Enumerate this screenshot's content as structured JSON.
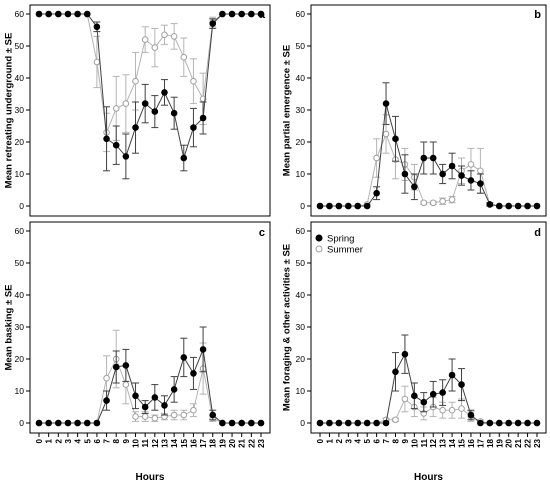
{
  "colors": {
    "spring": "#000000",
    "summer": "#a0a0a0",
    "spring_line": "#404040",
    "summer_line": "#b4b4b4"
  },
  "legend": {
    "spring": "Spring",
    "summer": "Summer"
  },
  "chart_data": [
    {
      "type": "line",
      "panel": "a",
      "ylabel": "Mean retreating underground ± SE",
      "xlabel": "Hours",
      "categories": [
        "0",
        "1",
        "2",
        "3",
        "4",
        "5",
        "6",
        "7",
        "8",
        "9",
        "10",
        "11",
        "12",
        "13",
        "14",
        "15",
        "16",
        "17",
        "18",
        "19",
        "20",
        "21",
        "22",
        "23"
      ],
      "ylim": [
        0,
        62
      ],
      "yticks": [
        0,
        10,
        20,
        30,
        40,
        50,
        60
      ],
      "series": [
        {
          "name": "Spring",
          "values": [
            60,
            60,
            60,
            60,
            60,
            60,
            56,
            21,
            19,
            15.5,
            24.5,
            32,
            29.5,
            35.5,
            29,
            15,
            24.5,
            27.5,
            57,
            60,
            60,
            60,
            60,
            60
          ],
          "se": [
            0,
            0,
            0,
            0,
            0,
            0,
            1.5,
            10,
            6,
            7,
            8,
            6,
            5,
            4,
            5,
            4,
            6,
            5,
            1.5,
            0,
            0,
            0,
            0,
            0
          ]
        },
        {
          "name": "Summer",
          "values": [
            60,
            60,
            60,
            60,
            60,
            60,
            45,
            23,
            30.5,
            32,
            39,
            52,
            49.5,
            53.5,
            53,
            46.5,
            39,
            33.5,
            57.5,
            60,
            60,
            60,
            60,
            60
          ],
          "se": [
            0,
            0,
            0,
            0,
            0,
            0,
            8,
            6,
            10,
            9,
            9,
            4,
            6,
            3,
            4,
            6,
            7,
            8,
            1.5,
            0,
            0,
            0,
            0,
            0
          ]
        }
      ]
    },
    {
      "type": "line",
      "panel": "b",
      "ylabel": "Mean partial emergence ± SE",
      "xlabel": "Hours",
      "categories": [
        "0",
        "1",
        "2",
        "3",
        "4",
        "5",
        "6",
        "7",
        "8",
        "9",
        "10",
        "11",
        "12",
        "13",
        "14",
        "15",
        "16",
        "17",
        "18",
        "19",
        "20",
        "21",
        "22",
        "23"
      ],
      "ylim": [
        0,
        62
      ],
      "yticks": [
        0,
        10,
        20,
        30,
        40,
        50,
        60
      ],
      "series": [
        {
          "name": "Spring",
          "values": [
            0,
            0,
            0,
            0,
            0,
            0,
            4,
            32,
            21,
            10,
            6,
            15,
            15,
            10,
            12.5,
            9.5,
            8,
            7,
            0.5,
            0,
            0,
            0,
            0,
            0
          ],
          "se": [
            0,
            0,
            0,
            0,
            0,
            0,
            2,
            6.5,
            7,
            6,
            4,
            5,
            5,
            3,
            4,
            3,
            3,
            3,
            0.5,
            0,
            0,
            0,
            0,
            0
          ]
        },
        {
          "name": "Summer",
          "values": [
            0,
            0,
            0,
            0,
            0,
            0.5,
            15,
            22.5,
            14.5,
            13,
            9,
            1,
            1,
            1.5,
            2,
            11,
            13,
            11,
            0.5,
            0,
            0,
            0,
            0,
            0
          ],
          "se": [
            0,
            0,
            0,
            0,
            0,
            0.5,
            6,
            6,
            6,
            5,
            4,
            0.5,
            0.5,
            1,
            1,
            4,
            5,
            7,
            0.5,
            0,
            0,
            0,
            0,
            0
          ]
        }
      ]
    },
    {
      "type": "line",
      "panel": "c",
      "ylabel": "Mean basking ± SE",
      "xlabel": "Hours",
      "categories": [
        "0",
        "1",
        "2",
        "3",
        "4",
        "5",
        "6",
        "7",
        "8",
        "9",
        "10",
        "11",
        "12",
        "13",
        "14",
        "15",
        "16",
        "17",
        "18",
        "19",
        "20",
        "21",
        "22",
        "23"
      ],
      "ylim": [
        0,
        62
      ],
      "yticks": [
        0,
        10,
        20,
        30,
        40,
        50,
        60
      ],
      "series": [
        {
          "name": "Spring",
          "values": [
            0,
            0,
            0,
            0,
            0,
            0,
            0,
            7,
            17.5,
            18,
            8.5,
            5,
            8,
            5.5,
            10.5,
            20.5,
            15.5,
            23,
            2.5,
            0,
            0,
            0,
            0,
            0
          ],
          "se": [
            0,
            0,
            0,
            0,
            0,
            0,
            0,
            3,
            5,
            5,
            4,
            2,
            4,
            3,
            4,
            6,
            5,
            7,
            1.5,
            0,
            0,
            0,
            0,
            0
          ]
        },
        {
          "name": "Summer",
          "values": [
            0,
            0,
            0,
            0,
            0,
            0,
            0,
            14,
            20,
            12,
            2,
            2,
            1.5,
            2,
            2.5,
            2.5,
            4,
            17,
            1.5,
            0,
            0,
            0,
            0,
            0
          ],
          "se": [
            0,
            0,
            0,
            0,
            0,
            0,
            0,
            7,
            9,
            6,
            1.5,
            1.5,
            1,
            1,
            1.5,
            1.5,
            2,
            8,
            1,
            0,
            0,
            0,
            0,
            0
          ]
        }
      ]
    },
    {
      "type": "line",
      "panel": "d",
      "ylabel": "Mean foraging & other activities ± SE",
      "xlabel": "Hours",
      "categories": [
        "0",
        "1",
        "2",
        "3",
        "4",
        "5",
        "6",
        "7",
        "8",
        "9",
        "10",
        "11",
        "12",
        "13",
        "14",
        "15",
        "16",
        "17",
        "18",
        "19",
        "20",
        "21",
        "22",
        "23"
      ],
      "ylim": [
        0,
        62
      ],
      "yticks": [
        0,
        10,
        20,
        30,
        40,
        50,
        60
      ],
      "series": [
        {
          "name": "Spring",
          "values": [
            0,
            0,
            0,
            0,
            0,
            0,
            0,
            0,
            16,
            21.5,
            8.5,
            6.5,
            9,
            9.5,
            15,
            12,
            2.5,
            0,
            0,
            0,
            0,
            0,
            0,
            0
          ],
          "se": [
            0,
            0,
            0,
            0,
            0,
            0,
            0,
            0,
            6,
            6,
            4,
            3,
            4,
            4,
            5,
            5,
            1.5,
            0,
            0,
            0,
            0,
            0,
            0,
            0
          ]
        },
        {
          "name": "Summer",
          "values": [
            0,
            0,
            0,
            0,
            0,
            0,
            0,
            1,
            1,
            7.5,
            5,
            3,
            5,
            4,
            4,
            4.5,
            2,
            0.5,
            0,
            0,
            0,
            0,
            0,
            0
          ],
          "se": [
            0,
            0,
            0,
            0,
            0,
            0,
            0,
            0.5,
            0.5,
            4,
            3,
            2,
            3,
            2.5,
            2.5,
            3,
            1.5,
            0.5,
            0,
            0,
            0,
            0,
            0,
            0
          ]
        }
      ]
    }
  ]
}
